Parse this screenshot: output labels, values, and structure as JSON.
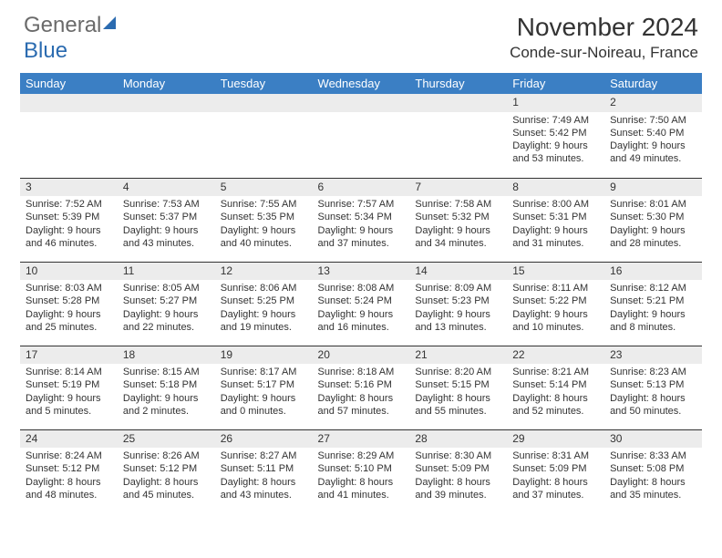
{
  "logo": {
    "part1": "General",
    "part2": "Blue"
  },
  "header": {
    "title": "November 2024",
    "location": "Conde-sur-Noireau, France"
  },
  "colors": {
    "header_bg": "#3b7fc4",
    "daynum_bg": "#ececec",
    "text": "#333333",
    "logo_gray": "#6a6a6a",
    "logo_blue": "#2b6bb0",
    "row_divider": "#333333"
  },
  "daysOfWeek": [
    "Sunday",
    "Monday",
    "Tuesday",
    "Wednesday",
    "Thursday",
    "Friday",
    "Saturday"
  ],
  "weeks": [
    [
      null,
      null,
      null,
      null,
      null,
      {
        "n": "1",
        "sr": "Sunrise: 7:49 AM",
        "ss": "Sunset: 5:42 PM",
        "dl": "Daylight: 9 hours and 53 minutes."
      },
      {
        "n": "2",
        "sr": "Sunrise: 7:50 AM",
        "ss": "Sunset: 5:40 PM",
        "dl": "Daylight: 9 hours and 49 minutes."
      }
    ],
    [
      {
        "n": "3",
        "sr": "Sunrise: 7:52 AM",
        "ss": "Sunset: 5:39 PM",
        "dl": "Daylight: 9 hours and 46 minutes."
      },
      {
        "n": "4",
        "sr": "Sunrise: 7:53 AM",
        "ss": "Sunset: 5:37 PM",
        "dl": "Daylight: 9 hours and 43 minutes."
      },
      {
        "n": "5",
        "sr": "Sunrise: 7:55 AM",
        "ss": "Sunset: 5:35 PM",
        "dl": "Daylight: 9 hours and 40 minutes."
      },
      {
        "n": "6",
        "sr": "Sunrise: 7:57 AM",
        "ss": "Sunset: 5:34 PM",
        "dl": "Daylight: 9 hours and 37 minutes."
      },
      {
        "n": "7",
        "sr": "Sunrise: 7:58 AM",
        "ss": "Sunset: 5:32 PM",
        "dl": "Daylight: 9 hours and 34 minutes."
      },
      {
        "n": "8",
        "sr": "Sunrise: 8:00 AM",
        "ss": "Sunset: 5:31 PM",
        "dl": "Daylight: 9 hours and 31 minutes."
      },
      {
        "n": "9",
        "sr": "Sunrise: 8:01 AM",
        "ss": "Sunset: 5:30 PM",
        "dl": "Daylight: 9 hours and 28 minutes."
      }
    ],
    [
      {
        "n": "10",
        "sr": "Sunrise: 8:03 AM",
        "ss": "Sunset: 5:28 PM",
        "dl": "Daylight: 9 hours and 25 minutes."
      },
      {
        "n": "11",
        "sr": "Sunrise: 8:05 AM",
        "ss": "Sunset: 5:27 PM",
        "dl": "Daylight: 9 hours and 22 minutes."
      },
      {
        "n": "12",
        "sr": "Sunrise: 8:06 AM",
        "ss": "Sunset: 5:25 PM",
        "dl": "Daylight: 9 hours and 19 minutes."
      },
      {
        "n": "13",
        "sr": "Sunrise: 8:08 AM",
        "ss": "Sunset: 5:24 PM",
        "dl": "Daylight: 9 hours and 16 minutes."
      },
      {
        "n": "14",
        "sr": "Sunrise: 8:09 AM",
        "ss": "Sunset: 5:23 PM",
        "dl": "Daylight: 9 hours and 13 minutes."
      },
      {
        "n": "15",
        "sr": "Sunrise: 8:11 AM",
        "ss": "Sunset: 5:22 PM",
        "dl": "Daylight: 9 hours and 10 minutes."
      },
      {
        "n": "16",
        "sr": "Sunrise: 8:12 AM",
        "ss": "Sunset: 5:21 PM",
        "dl": "Daylight: 9 hours and 8 minutes."
      }
    ],
    [
      {
        "n": "17",
        "sr": "Sunrise: 8:14 AM",
        "ss": "Sunset: 5:19 PM",
        "dl": "Daylight: 9 hours and 5 minutes."
      },
      {
        "n": "18",
        "sr": "Sunrise: 8:15 AM",
        "ss": "Sunset: 5:18 PM",
        "dl": "Daylight: 9 hours and 2 minutes."
      },
      {
        "n": "19",
        "sr": "Sunrise: 8:17 AM",
        "ss": "Sunset: 5:17 PM",
        "dl": "Daylight: 9 hours and 0 minutes."
      },
      {
        "n": "20",
        "sr": "Sunrise: 8:18 AM",
        "ss": "Sunset: 5:16 PM",
        "dl": "Daylight: 8 hours and 57 minutes."
      },
      {
        "n": "21",
        "sr": "Sunrise: 8:20 AM",
        "ss": "Sunset: 5:15 PM",
        "dl": "Daylight: 8 hours and 55 minutes."
      },
      {
        "n": "22",
        "sr": "Sunrise: 8:21 AM",
        "ss": "Sunset: 5:14 PM",
        "dl": "Daylight: 8 hours and 52 minutes."
      },
      {
        "n": "23",
        "sr": "Sunrise: 8:23 AM",
        "ss": "Sunset: 5:13 PM",
        "dl": "Daylight: 8 hours and 50 minutes."
      }
    ],
    [
      {
        "n": "24",
        "sr": "Sunrise: 8:24 AM",
        "ss": "Sunset: 5:12 PM",
        "dl": "Daylight: 8 hours and 48 minutes."
      },
      {
        "n": "25",
        "sr": "Sunrise: 8:26 AM",
        "ss": "Sunset: 5:12 PM",
        "dl": "Daylight: 8 hours and 45 minutes."
      },
      {
        "n": "26",
        "sr": "Sunrise: 8:27 AM",
        "ss": "Sunset: 5:11 PM",
        "dl": "Daylight: 8 hours and 43 minutes."
      },
      {
        "n": "27",
        "sr": "Sunrise: 8:29 AM",
        "ss": "Sunset: 5:10 PM",
        "dl": "Daylight: 8 hours and 41 minutes."
      },
      {
        "n": "28",
        "sr": "Sunrise: 8:30 AM",
        "ss": "Sunset: 5:09 PM",
        "dl": "Daylight: 8 hours and 39 minutes."
      },
      {
        "n": "29",
        "sr": "Sunrise: 8:31 AM",
        "ss": "Sunset: 5:09 PM",
        "dl": "Daylight: 8 hours and 37 minutes."
      },
      {
        "n": "30",
        "sr": "Sunrise: 8:33 AM",
        "ss": "Sunset: 5:08 PM",
        "dl": "Daylight: 8 hours and 35 minutes."
      }
    ]
  ]
}
